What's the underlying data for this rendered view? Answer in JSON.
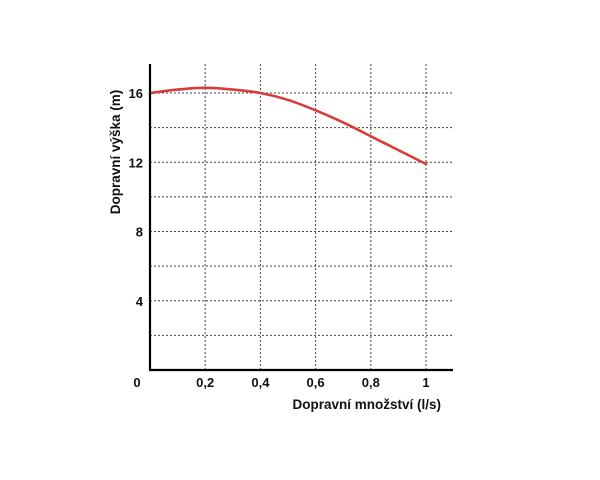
{
  "chart_data": {
    "type": "line",
    "xlabel": "Dopravní množství (l/s)",
    "ylabel": "Dopravní výška (m)",
    "xlim": [
      0,
      1.1
    ],
    "ylim": [
      0,
      17.5
    ],
    "x_ticks": [
      0.2,
      0.4,
      0.6,
      0.8,
      1.0
    ],
    "x_tick_labels": [
      "0,2",
      "0,4",
      "0,6",
      "0,8",
      "1"
    ],
    "y_ticks": [
      4,
      8,
      12,
      16
    ],
    "y_tick_labels": [
      "4",
      "8",
      "12",
      "16"
    ],
    "origin_label": "0",
    "x_grid": [
      0.2,
      0.4,
      0.6,
      0.8,
      1.0
    ],
    "y_grid": [
      2,
      4,
      6,
      8,
      10,
      12,
      14,
      16
    ],
    "grid": true,
    "series": [
      {
        "x": [
          0,
          0.1,
          0.2,
          0.3,
          0.4,
          0.5,
          0.6,
          0.7,
          0.8,
          0.9,
          1.0
        ],
        "y": [
          16.0,
          16.2,
          16.3,
          16.2,
          16.0,
          15.6,
          15.0,
          14.3,
          13.5,
          12.7,
          11.9
        ]
      }
    ],
    "colors": {
      "line": "#d93a3a",
      "axis": "#000000",
      "grid": "#444444"
    }
  }
}
